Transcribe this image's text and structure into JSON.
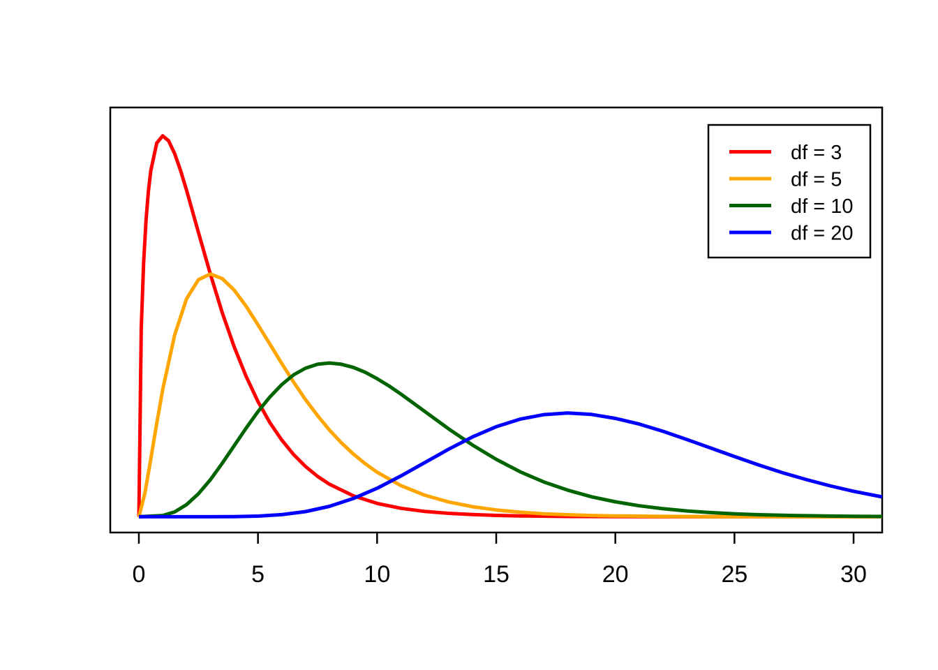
{
  "figure": {
    "background": "#ffffff",
    "border_color": "#000000",
    "description": "Chi-squared probability density curves for varying degrees of freedom"
  },
  "chart_data": {
    "type": "line",
    "title": "",
    "xlabel": "",
    "ylabel": "",
    "xlim": [
      0,
      30
    ],
    "ylim": [
      0,
      0.25
    ],
    "x_ticks": [
      0,
      5,
      10,
      15,
      20,
      25,
      30
    ],
    "x_tick_labels": [
      "0",
      "5",
      "10",
      "15",
      "20",
      "25",
      "30"
    ],
    "y_ticks": [],
    "grid": false,
    "legend_position": "top-right",
    "series": [
      {
        "name": "df = 3",
        "df": 3,
        "color": "#FF0000",
        "points": [
          [
            0,
            0
          ],
          [
            0.1,
            0.12
          ],
          [
            0.2,
            0.1614
          ],
          [
            0.3,
            0.1881
          ],
          [
            0.4,
            0.2066
          ],
          [
            0.5,
            0.2197
          ],
          [
            0.75,
            0.2374
          ],
          [
            1,
            0.242
          ],
          [
            1.25,
            0.2388
          ],
          [
            1.5,
            0.2308
          ],
          [
            1.75,
            0.22
          ],
          [
            2,
            0.2076
          ],
          [
            2.5,
            0.1807
          ],
          [
            3,
            0.1542
          ],
          [
            3.5,
            0.1297
          ],
          [
            4,
            0.108
          ],
          [
            4.5,
            0.0892
          ],
          [
            5,
            0.0732
          ],
          [
            5.5,
            0.0598
          ],
          [
            6,
            0.0487
          ],
          [
            6.5,
            0.0395
          ],
          [
            7,
            0.0319
          ],
          [
            7.5,
            0.0257
          ],
          [
            8,
            0.0207
          ],
          [
            9,
            0.0133
          ],
          [
            10,
            0.0085
          ],
          [
            11,
            0.0054
          ],
          [
            12,
            0.0034
          ],
          [
            13,
            0.0022
          ],
          [
            14,
            0.0014
          ],
          [
            15,
            0.00085
          ],
          [
            16,
            0.00054
          ],
          [
            18,
            0.00021
          ],
          [
            20,
            8e-05
          ],
          [
            22,
            3e-05
          ],
          [
            25,
            1e-05
          ],
          [
            28,
            0
          ],
          [
            31.2,
            0
          ]
        ]
      },
      {
        "name": "df = 5",
        "df": 5,
        "color": "#FFA500",
        "points": [
          [
            0,
            0
          ],
          [
            0.25,
            0.0147
          ],
          [
            0.5,
            0.0366
          ],
          [
            0.75,
            0.0594
          ],
          [
            1,
            0.0807
          ],
          [
            1.5,
            0.1154
          ],
          [
            2,
            0.1384
          ],
          [
            2.5,
            0.1506
          ],
          [
            3,
            0.1542
          ],
          [
            3.5,
            0.1513
          ],
          [
            4,
            0.144
          ],
          [
            4.5,
            0.1338
          ],
          [
            5,
            0.122
          ],
          [
            5.5,
            0.1097
          ],
          [
            6,
            0.0973
          ],
          [
            6.5,
            0.0855
          ],
          [
            7,
            0.0743
          ],
          [
            7.5,
            0.0643
          ],
          [
            8,
            0.0551
          ],
          [
            8.5,
            0.047
          ],
          [
            9,
            0.0399
          ],
          [
            9.5,
            0.0337
          ],
          [
            10,
            0.0283
          ],
          [
            11,
            0.0198
          ],
          [
            12,
            0.0137
          ],
          [
            13,
            0.0094
          ],
          [
            14,
            0.0064
          ],
          [
            15,
            0.0043
          ],
          [
            16,
            0.0029
          ],
          [
            17,
            0.0019
          ],
          [
            18,
            0.0013
          ],
          [
            19,
            0.00082
          ],
          [
            20,
            0.00054
          ],
          [
            22,
            0.00023
          ],
          [
            24,
            0.0001
          ],
          [
            26,
            4e-05
          ],
          [
            28,
            2e-05
          ],
          [
            31.2,
            0
          ]
        ]
      },
      {
        "name": "df = 10",
        "df": 10,
        "color": "#006400",
        "points": [
          [
            0,
            0
          ],
          [
            1,
            0.0008
          ],
          [
            1.5,
            0.0031
          ],
          [
            2,
            0.0077
          ],
          [
            2.5,
            0.0146
          ],
          [
            3,
            0.0235
          ],
          [
            3.5,
            0.034
          ],
          [
            4,
            0.0451
          ],
          [
            4.5,
            0.0563
          ],
          [
            5,
            0.0668
          ],
          [
            5.5,
            0.0761
          ],
          [
            6,
            0.084
          ],
          [
            6.5,
            0.0902
          ],
          [
            7,
            0.0944
          ],
          [
            7.5,
            0.0969
          ],
          [
            8,
            0.0977
          ],
          [
            8.5,
            0.0969
          ],
          [
            9,
            0.0949
          ],
          [
            9.5,
            0.0918
          ],
          [
            10,
            0.0877
          ],
          [
            10.5,
            0.0831
          ],
          [
            11,
            0.0779
          ],
          [
            12,
            0.0669
          ],
          [
            13,
            0.0559
          ],
          [
            14,
            0.0456
          ],
          [
            15,
            0.0365
          ],
          [
            16,
            0.0286
          ],
          [
            17,
            0.0221
          ],
          [
            18,
            0.0169
          ],
          [
            19,
            0.0127
          ],
          [
            20,
            0.0095
          ],
          [
            21,
            0.007
          ],
          [
            22,
            0.0051
          ],
          [
            23,
            0.0037
          ],
          [
            24,
            0.0027
          ],
          [
            25,
            0.0019
          ],
          [
            26,
            0.0013
          ],
          [
            27,
            0.00095
          ],
          [
            28,
            0.00067
          ],
          [
            29,
            0.00046
          ],
          [
            30,
            0.00032
          ],
          [
            31.2,
            0.00021
          ]
        ]
      },
      {
        "name": "df = 20",
        "df": 20,
        "color": "#0000FF",
        "points": [
          [
            0,
            0
          ],
          [
            2,
            0
          ],
          [
            3,
            1e-05
          ],
          [
            4,
            0.0001
          ],
          [
            5,
            0.00043
          ],
          [
            6,
            0.00135
          ],
          [
            7,
            0.00328
          ],
          [
            8,
            0.00662
          ],
          [
            9,
            0.01158
          ],
          [
            10,
            0.01813
          ],
          [
            11,
            0.02594
          ],
          [
            12,
            0.03442
          ],
          [
            13,
            0.04291
          ],
          [
            14,
            0.0507
          ],
          [
            15,
            0.0572
          ],
          [
            16,
            0.062
          ],
          [
            17,
            0.0649
          ],
          [
            18,
            0.0659
          ],
          [
            19,
            0.065
          ],
          [
            20,
            0.0625
          ],
          [
            21,
            0.0589
          ],
          [
            22,
            0.0543
          ],
          [
            23,
            0.0491
          ],
          [
            24,
            0.0437
          ],
          [
            25,
            0.0383
          ],
          [
            26,
            0.033
          ],
          [
            27,
            0.0281
          ],
          [
            28,
            0.0237
          ],
          [
            29,
            0.0197
          ],
          [
            30,
            0.0162
          ],
          [
            31.2,
            0.0126
          ]
        ]
      }
    ],
    "legend": {
      "entries": [
        {
          "label": "df = 3",
          "color": "#FF0000"
        },
        {
          "label": "df = 5",
          "color": "#FFA500"
        },
        {
          "label": "df = 10",
          "color": "#006400"
        },
        {
          "label": "df = 20",
          "color": "#0000FF"
        }
      ]
    }
  }
}
